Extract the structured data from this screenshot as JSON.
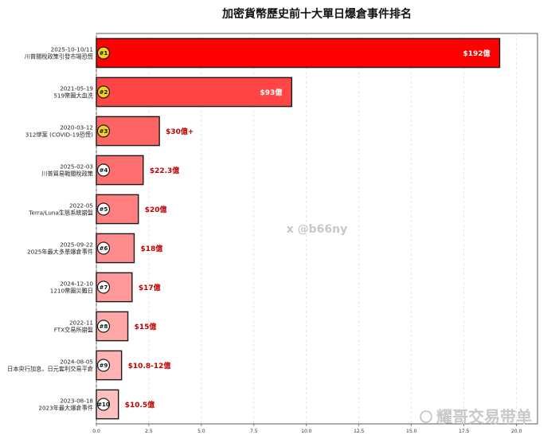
{
  "chart_data": {
    "type": "bar",
    "orientation": "horizontal",
    "title": "加密貨幣歷史前十大單日爆倉事件排名",
    "xlabel": "",
    "ylabel": "",
    "xlim": [
      0,
      21
    ],
    "xticks": [
      "0.0",
      "2.5",
      "5.0",
      "7.5",
      "10.0",
      "12.5",
      "15.0",
      "17.5",
      "20.0"
    ],
    "grid": "vertical dashed",
    "items": [
      {
        "rank": "#1",
        "date": "2025-10-10/11",
        "event": "川普關稅政策引發市場恐慌",
        "value": 19.2,
        "label": "$192億",
        "color": "#ff0000",
        "badge": "#f2cf22"
      },
      {
        "rank": "#2",
        "date": "2021-05-19",
        "event": "519幣圈大血洗",
        "value": 9.3,
        "label": "$93億",
        "color": "#ff4545",
        "badge": "#f2cf22"
      },
      {
        "rank": "#3",
        "date": "2020-03-12",
        "event": "312慘案 (COVID-19恐慌)",
        "value": 3.0,
        "label": "$30億+",
        "color": "#ff6464",
        "badge": "#f2cf22"
      },
      {
        "rank": "#4",
        "date": "2025-02-03",
        "event": "川普貿易戰關稅政策",
        "value": 2.23,
        "label": "$22.3億",
        "color": "#ff6e6e",
        "badge": "#ffffff"
      },
      {
        "rank": "#5",
        "date": "2022-05",
        "event": "Terra/Luna生態系統崩盤",
        "value": 2.0,
        "label": "$20億",
        "color": "#ff7f7f",
        "badge": "#ffffff"
      },
      {
        "rank": "#6",
        "date": "2025-09-22",
        "event": "2025年最大多單爆倉事件",
        "value": 1.8,
        "label": "$18億",
        "color": "#ff8c8c",
        "badge": "#ffffff"
      },
      {
        "rank": "#7",
        "date": "2024-12-10",
        "event": "1210幣圈災難日",
        "value": 1.7,
        "label": "$17億",
        "color": "#ff9999",
        "badge": "#ffffff"
      },
      {
        "rank": "#8",
        "date": "2022-11",
        "event": "FTX交易所崩盤",
        "value": 1.5,
        "label": "$15億",
        "color": "#ffa6a6",
        "badge": "#ffffff"
      },
      {
        "rank": "#9",
        "date": "2024-08-05",
        "event": "日本央行加息，日元套利交易平倉",
        "value": 1.2,
        "label": "$10.8-12億",
        "color": "#ffb3b3",
        "badge": "#ffffff"
      },
      {
        "rank": "#10",
        "date": "2023-08-18",
        "event": "2023年最大爆倉事件",
        "value": 1.05,
        "label": "$10.5億",
        "color": "#ffc0c0",
        "badge": "#ffffff"
      }
    ]
  },
  "watermarks": {
    "center": "x @b66ny",
    "corner": "耀哥交易带单"
  }
}
